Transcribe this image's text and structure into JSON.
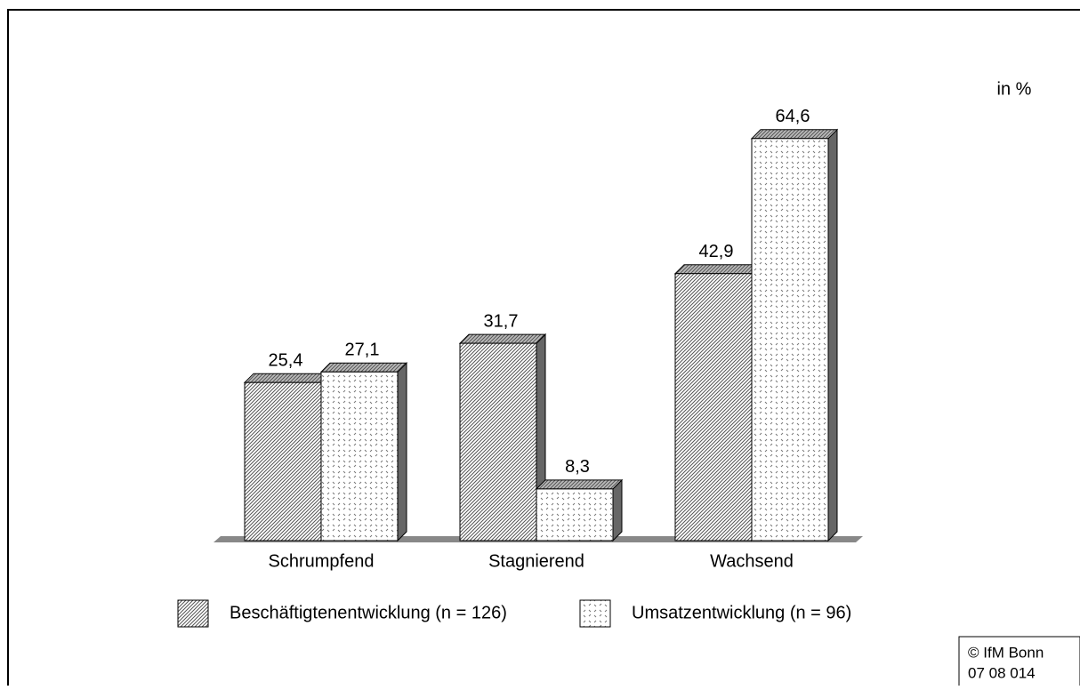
{
  "chart_data": {
    "type": "bar3d",
    "unit_label": "in %",
    "categories": [
      "Schrumpfend",
      "Stagnierend",
      "Wachsend"
    ],
    "series": [
      {
        "name": "Beschäftigtenentwicklung (n = 126)",
        "pattern": "hatch",
        "values": [
          25.4,
          31.7,
          42.9
        ],
        "value_labels": [
          "25,4",
          "31,7",
          "42,9"
        ]
      },
      {
        "name": "Umsatzentwicklung (n = 96)",
        "pattern": "dots",
        "values": [
          27.1,
          8.3,
          64.6
        ],
        "value_labels": [
          "27,1",
          "8,3",
          "64,6"
        ]
      }
    ],
    "source": [
      "© IfM Bonn",
      "07 08 014"
    ]
  }
}
